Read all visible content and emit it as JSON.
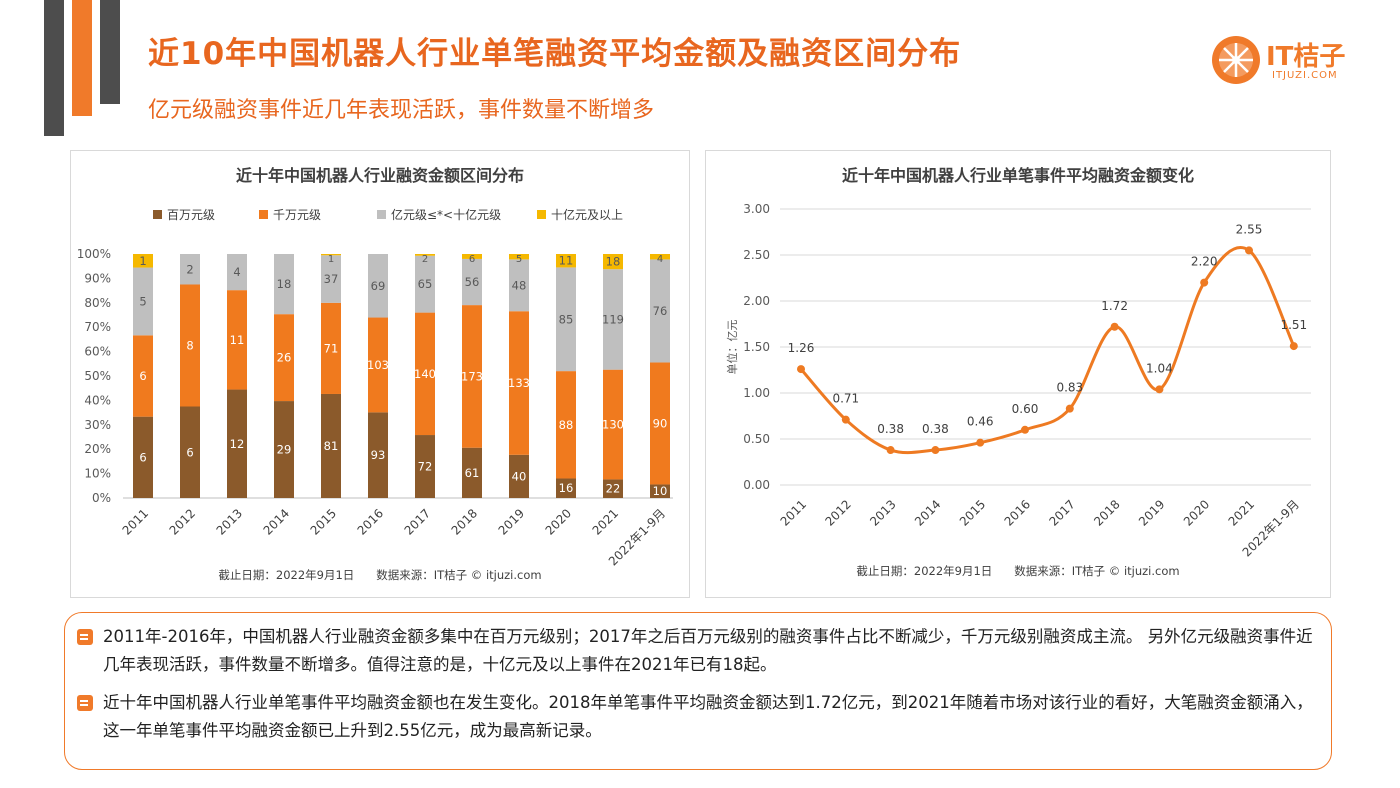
{
  "header": {
    "title": "近10年中国机器人行业单笔融资平均金额及融资区间分布",
    "subtitle": "亿元级融资事件近几年表现活跃，事件数量不断增多"
  },
  "logo": {
    "brand": "IT桔子",
    "url": "ITJUZI.COM"
  },
  "colors": {
    "accent": "#e8661f",
    "brown": "#8b5a2b",
    "orange": "#f07a1e",
    "gray": "#bfbfbf",
    "yellow": "#f5b800",
    "line": "#ee7a22"
  },
  "left_chart": {
    "footer": "截止日期：2022年9月1日      数据来源：IT桔子 © itjuzi.com"
  },
  "right_chart": {
    "footer": "截止日期：2022年9月1日      数据来源：IT桔子 © itjuzi.com"
  },
  "notes": [
    "2011年-2016年，中国机器人行业融资金额多集中在百万元级别；2017年之后百万元级别的融资事件占比不断减少，千万元级别融资成主流。 另外亿元级融资事件近几年表现活跃，事件数量不断增多。值得注意的是，十亿元及以上事件在2021年已有18起。",
    " 近十年中国机器人行业单笔事件平均融资金额也在发生变化。2018年单笔事件平均融资金额达到1.72亿元，到2021年随着市场对该行业的看好，大笔融资金额涌入，这一年单笔事件平均融资金额已上升到2.55亿元，成为最高新记录。"
  ],
  "chart_data": [
    {
      "type": "bar",
      "stacked": "percent",
      "title": "近十年中国机器人行业融资金额区间分布",
      "categories": [
        "2011",
        "2012",
        "2013",
        "2014",
        "2015",
        "2016",
        "2017",
        "2018",
        "2019",
        "2020",
        "2021",
        "2022年1-9月"
      ],
      "series": [
        {
          "name": "百万元级",
          "color": "#8b5a2b",
          "values": [
            6,
            6,
            12,
            29,
            81,
            93,
            72,
            61,
            40,
            16,
            22,
            10
          ]
        },
        {
          "name": "千万元级",
          "color": "#f07a1e",
          "values": [
            6,
            8,
            11,
            26,
            71,
            103,
            140,
            173,
            133,
            88,
            130,
            90
          ]
        },
        {
          "name": "亿元级≤*<十亿元级",
          "color": "#bfbfbf",
          "values": [
            5,
            2,
            4,
            18,
            37,
            69,
            65,
            56,
            48,
            85,
            119,
            76
          ]
        },
        {
          "name": "十亿元及以上",
          "color": "#f5b800",
          "values": [
            1,
            0,
            0,
            0,
            1,
            0,
            2,
            6,
            5,
            11,
            18,
            4
          ]
        }
      ],
      "yticks": [
        "0%",
        "10%",
        "20%",
        "30%",
        "40%",
        "50%",
        "60%",
        "70%",
        "80%",
        "90%",
        "100%"
      ],
      "ylim": [
        0,
        1
      ],
      "grid": false,
      "legend": "top"
    },
    {
      "type": "line",
      "title": "近十年中国机器人行业单笔事件平均融资金额变化",
      "ylabel": "单位：亿元",
      "x": [
        "2011",
        "2012",
        "2013",
        "2014",
        "2015",
        "2016",
        "2017",
        "2018",
        "2019",
        "2020",
        "2021",
        "2022年1-9月"
      ],
      "series": [
        {
          "values": [
            1.26,
            0.71,
            0.38,
            0.38,
            0.46,
            0.6,
            0.83,
            1.72,
            1.04,
            2.2,
            2.55,
            1.51
          ]
        }
      ],
      "labels": [
        "1.26",
        "0.71",
        "0.38",
        "0.38",
        "0.46",
        "0.60",
        "0.83",
        "1.72",
        "1.04",
        "2.20",
        "2.55",
        "1.51"
      ],
      "yticks": [
        "0.00",
        "0.50",
        "1.00",
        "1.50",
        "2.00",
        "2.50",
        "3.00"
      ],
      "ylim": [
        0,
        3
      ],
      "grid": true,
      "legend": "none"
    }
  ]
}
